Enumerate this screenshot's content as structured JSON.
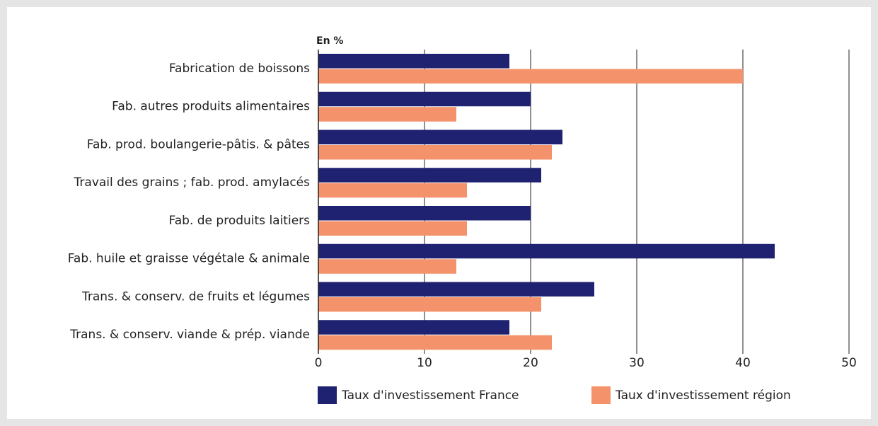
{
  "chart_data": {
    "type": "barh",
    "axis_unit": "En %",
    "categories": [
      "Fabrication de boissons",
      "Fab. autres produits alimentaires",
      "Fab. prod. boulangerie-pâtis. & pâtes",
      "Travail des grains ; fab. prod. amylacés",
      "Fab. de produits laitiers",
      "Fab. huile et graisse végétale & animale",
      "Trans. & conserv. de fruits et légumes",
      "Trans. & conserv. viande & prép. viande"
    ],
    "series": [
      {
        "name": "Taux d'investissement France",
        "color": "#1f2270",
        "values": [
          18,
          20,
          23,
          21,
          20,
          43,
          26,
          18
        ]
      },
      {
        "name": "Taux d'investissement région",
        "color": "#f4926b",
        "values": [
          40,
          13,
          22,
          14,
          14,
          13,
          21,
          22
        ]
      }
    ],
    "xlim": [
      0,
      50
    ],
    "xticks": [
      0,
      10,
      20,
      30,
      40,
      50
    ],
    "grid": true,
    "legend": "bottom"
  }
}
